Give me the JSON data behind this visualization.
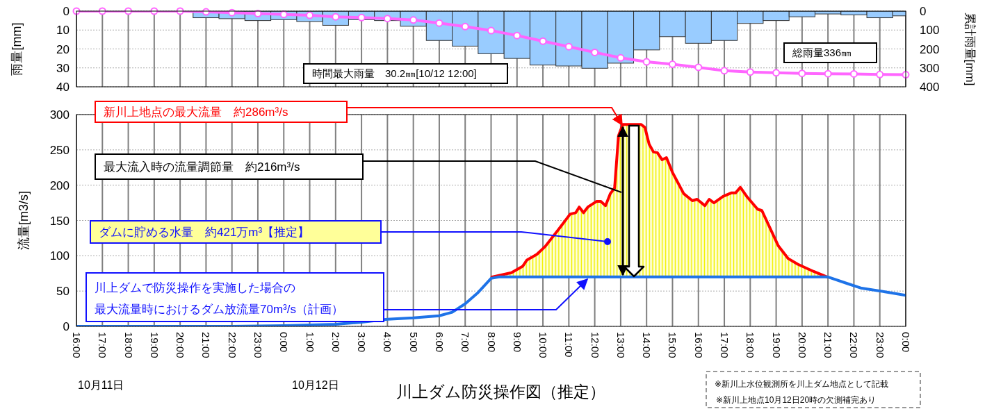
{
  "chart_data": [
    {
      "type": "bar",
      "ylabel": "雨量[mm]",
      "y2label": "累計雨量[mm]",
      "xlim": [
        "--10-11T16:00",
        "--10-13T00:00"
      ],
      "xticks": [
        "--10-11T16:00",
        "--10-11T17:00",
        "--10-11T18:00",
        "--10-11T19:00",
        "--10-11T20:00",
        "--10-11T21:00",
        "--10-11T22:00",
        "--10-11T23:00",
        "--10-12T00:00",
        "--10-12T01:00",
        "--10-12T02:00",
        "--10-12T03:00",
        "--10-12T04:00",
        "--10-12T05:00",
        "--10-12T06:00",
        "--10-12T07:00",
        "--10-12T08:00",
        "--10-12T09:00",
        "--10-12T10:00",
        "--10-12T11:00",
        "--10-12T12:00",
        "--10-12T13:00",
        "--10-12T14:00",
        "--10-12T15:00",
        "--10-12T16:00",
        "--10-12T17:00",
        "--10-12T18:00",
        "--10-12T19:00",
        "--10-12T20:00",
        "--10-12T21:00",
        "--10-12T22:00",
        "--10-12T23:00",
        "--10-13T00:00"
      ],
      "ylim": [
        40,
        0
      ],
      "yticks": [
        0,
        10,
        20,
        30,
        40
      ],
      "y2lim": [
        400,
        0
      ],
      "y2ticks": [
        0,
        100,
        200,
        300,
        400
      ],
      "grid": true,
      "tick_labels": "y",
      "x": [
        "--10-11T16:00",
        "--10-11T17:00",
        "--10-11T18:00",
        "--10-11T19:00",
        "--10-11T20:00",
        "--10-11T21:00",
        "--10-11T22:00",
        "--10-11T23:00",
        "--10-12T00:00",
        "--10-12T01:00",
        "--10-12T02:00",
        "--10-12T03:00",
        "--10-12T04:00",
        "--10-12T05:00",
        "--10-12T06:00",
        "--10-12T07:00",
        "--10-12T08:00",
        "--10-12T09:00",
        "--10-12T10:00",
        "--10-12T11:00",
        "--10-12T12:00",
        "--10-12T13:00",
        "--10-12T14:00",
        "--10-12T15:00",
        "--10-12T16:00",
        "--10-12T17:00",
        "--10-12T18:00",
        "--10-12T19:00",
        "--10-12T20:00",
        "--10-12T21:00",
        "--10-12T22:00",
        "--10-12T23:00",
        "--10-13T00:00"
      ],
      "series": [
        {
          "color": "#99ccff",
          "values": [
            0.5,
            0,
            0,
            0,
            0,
            3.5,
            4,
            5,
            4.5,
            5.5,
            7.5,
            4.5,
            5,
            8,
            15.5,
            18.5,
            22.5,
            25,
            28.5,
            29,
            30.2,
            27.5,
            20.5,
            13.5,
            17,
            15.5,
            6.5,
            5,
            3,
            1.5,
            2,
            3.5,
            2.5
          ]
        },
        {
          "type": "line",
          "axis": "y2",
          "marker": "circle",
          "color": "#ff66ff",
          "values": [
            0,
            0,
            0,
            0,
            0,
            4,
            8,
            13,
            17,
            22,
            30,
            34,
            39,
            47,
            63,
            82,
            103,
            129,
            159,
            188,
            218,
            247,
            268,
            281,
            297,
            315,
            322,
            326,
            329,
            331,
            332,
            335,
            336
          ]
        }
      ],
      "annotations": [
        "時間最大雨量　30.2㎜[10/12 12:00]",
        "総雨量336㎜"
      ]
    },
    {
      "type": "line",
      "title": "川上ダム防災操作図（推定）",
      "ylabel": "流量[m3/s]",
      "xlim": [
        "--10-11T16:00",
        "--10-13T00:00"
      ],
      "ylim": [
        0,
        300
      ],
      "yticks": [
        0,
        50,
        100,
        150,
        200,
        250,
        300
      ],
      "grid": true,
      "xticks": [
        {
          "value": "--10-11T16:00",
          "label": "16:00"
        },
        {
          "value": "--10-11T17:00",
          "label": "17:00"
        },
        {
          "value": "--10-11T18:00",
          "label": "18:00"
        },
        {
          "value": "--10-11T19:00",
          "label": "19:00"
        },
        {
          "value": "--10-11T20:00",
          "label": "20:00"
        },
        {
          "value": "--10-11T21:00",
          "label": "21:00"
        },
        {
          "value": "--10-11T22:00",
          "label": "22:00"
        },
        {
          "value": "--10-11T23:00",
          "label": "23:00"
        },
        {
          "value": "--10-12T00:00",
          "label": "0:00"
        },
        {
          "value": "--10-12T01:00",
          "label": "1:00"
        },
        {
          "value": "--10-12T02:00",
          "label": "2:00"
        },
        {
          "value": "--10-12T03:00",
          "label": "3:00"
        },
        {
          "value": "--10-12T04:00",
          "label": "4:00"
        },
        {
          "value": "--10-12T05:00",
          "label": "5:00"
        },
        {
          "value": "--10-12T06:00",
          "label": "6:00"
        },
        {
          "value": "--10-12T07:00",
          "label": "7:00"
        },
        {
          "value": "--10-12T08:00",
          "label": "8:00"
        },
        {
          "value": "--10-12T09:00",
          "label": "9:00"
        },
        {
          "value": "--10-12T10:00",
          "label": "10:00"
        },
        {
          "value": "--10-12T11:00",
          "label": "11:00"
        },
        {
          "value": "--10-12T12:00",
          "label": "12:00"
        },
        {
          "value": "--10-12T13:00",
          "label": "13:00"
        },
        {
          "value": "--10-12T14:00",
          "label": "14:00"
        },
        {
          "value": "--10-12T15:00",
          "label": "15:00"
        },
        {
          "value": "--10-12T16:00",
          "label": "16:00"
        },
        {
          "value": "--10-12T17:00",
          "label": "17:00"
        },
        {
          "value": "--10-12T18:00",
          "label": "18:00"
        },
        {
          "value": "--10-12T19:00",
          "label": "19:00"
        },
        {
          "value": "--10-12T20:00",
          "label": "20:00"
        },
        {
          "value": "--10-12T21:00",
          "label": "21:00"
        },
        {
          "value": "--10-12T22:00",
          "label": "22:00"
        },
        {
          "value": "--10-12T23:00",
          "label": "23:00"
        },
        {
          "value": "--10-13T00:00",
          "label": "0:00"
        }
      ],
      "series": [
        {
          "color": "#ff0000",
          "x": [
            "--10-12T08:02",
            "--10-12T08:47",
            "--10-12T09:13",
            "--10-12T09:23",
            "--10-12T09:46",
            "--10-12T10:05",
            "--10-12T10:37",
            "--10-12T11:03",
            "--10-12T11:16",
            "--10-12T11:24",
            "--10-12T11:34",
            "--10-12T11:44",
            "--10-12T12:04",
            "--10-12T12:14",
            "--10-12T12:25",
            "--10-12T12:36",
            "--10-12T12:46",
            "--10-12T12:55",
            "--10-12T13:05",
            "--10-12T13:24",
            "--10-12T13:47",
            "--10-12T13:56",
            "--10-12T14:06",
            "--10-12T14:16",
            "--10-12T14:25",
            "--10-12T14:36",
            "--10-12T14:46",
            "--10-12T15:00",
            "--10-12T15:26",
            "--10-12T15:46",
            "--10-12T15:57",
            "--10-12T16:15",
            "--10-12T16:25",
            "--10-12T16:36",
            "--10-12T16:57",
            "--10-12T17:16",
            "--10-12T17:26",
            "--10-12T17:37",
            "--10-12T17:52",
            "--10-12T18:17",
            "--10-12T18:27",
            "--10-12T19:05",
            "--10-12T19:28",
            "--10-12T19:50",
            "--10-12T20:26",
            "--10-12T20:58"
          ],
          "values": [
            70,
            76,
            85,
            94,
            102,
            113,
            138,
            159,
            161,
            169,
            161,
            169,
            177,
            177,
            171,
            188,
            196,
            270,
            286,
            286,
            286,
            282,
            258,
            247,
            246,
            236,
            239,
            218,
            188,
            178,
            180,
            171,
            180,
            175,
            184,
            189,
            189,
            197,
            184,
            166,
            164,
            114,
            96,
            88,
            78,
            70
          ],
          "lower": [
            70,
            70,
            70,
            70,
            70,
            70,
            70,
            70,
            70,
            70,
            70,
            70,
            70,
            70,
            70,
            70,
            70,
            70,
            70,
            70,
            70,
            70,
            70,
            70,
            70,
            70,
            70,
            70,
            70,
            70,
            70,
            70,
            70,
            70,
            70,
            70,
            70,
            70,
            70,
            70,
            70,
            70,
            70,
            70,
            70,
            70
          ],
          "upper": [
            70,
            76,
            85,
            94,
            102,
            113,
            138,
            159,
            161,
            169,
            161,
            169,
            177,
            177,
            171,
            188,
            196,
            270,
            286,
            286,
            286,
            282,
            258,
            247,
            246,
            236,
            239,
            218,
            188,
            178,
            180,
            171,
            180,
            175,
            184,
            189,
            189,
            197,
            184,
            166,
            164,
            114,
            96,
            88,
            78,
            70
          ]
        },
        {
          "color": "#1e73e8",
          "x": [
            "--10-11T16:00",
            "--10-11T22:00",
            "--10-12T00:00",
            "--10-12T02:00",
            "--10-12T03:00",
            "--10-12T04:00",
            "--10-12T05:00",
            "--10-12T06:00",
            "--10-12T06:30",
            "--10-12T07:00",
            "--10-12T07:30",
            "--10-12T08:00",
            "--10-12T08:18",
            "--10-12T21:00",
            "--10-12T21:48",
            "--10-12T22:18",
            "--10-12T23:12",
            "--10-13T00:00"
          ],
          "values": [
            0,
            0,
            1,
            3,
            6,
            10,
            12,
            15,
            20,
            32,
            48,
            68,
            70,
            70,
            60,
            54,
            49,
            44
          ]
        }
      ],
      "annotations": [
        "新川上地点の最大流量　約286m³/s",
        "最大流入時の流量調節量　約216m³/s",
        "ダムに貯める水量　約421万m³【推定】",
        "川上ダムで防災操作を実施した場合の",
        "最大流量時におけるダム放流量70m³/s（計画）",
        "10月11日",
        "10月12日",
        "※新川上水位観測所を川上ダム地点として記載",
        "※新川上地点10月12日20時の欠測補完あり"
      ]
    }
  ]
}
